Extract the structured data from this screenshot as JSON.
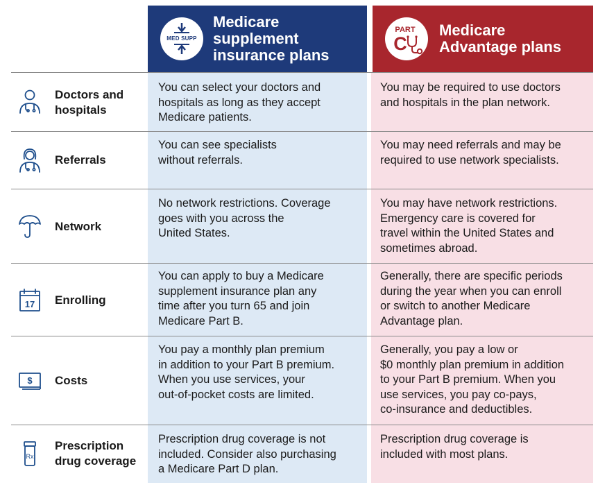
{
  "header": {
    "supplement": {
      "badge_text": "MED SUPP",
      "title": "Medicare\nsupplement\ninsurance plans"
    },
    "advantage": {
      "badge_part": "PART",
      "badge_letter": "C",
      "title": "Medicare\nAdvantage plans"
    }
  },
  "colors": {
    "supplement_header": "#1e3a7a",
    "advantage_header": "#a8262d",
    "supplement_bg": "#dde9f5",
    "advantage_bg": "#f8dfe5",
    "icon": "#1e4e8c"
  },
  "rows": [
    {
      "icon": "doctor-icon",
      "label": "Doctors and\nhospitals",
      "supplement": "You can select your doctors and\nhospitals as long as they accept\nMedicare patients.",
      "advantage": "You may be required to use doctors\nand hospitals in the plan network."
    },
    {
      "icon": "nurse-icon",
      "label": "Referrals",
      "supplement": "You can see specialists\nwithout referrals.",
      "advantage": "You may need referrals and may be\nrequired to use network specialists."
    },
    {
      "icon": "umbrella-icon",
      "label": "Network",
      "supplement": "No network restrictions. Coverage\ngoes with you across the\nUnited States.",
      "advantage": "You may have network restrictions.\nEmergency care is covered for\ntravel within the United States and\nsometimes abroad."
    },
    {
      "icon": "calendar-icon",
      "icon_text": "17",
      "label": "Enrolling",
      "supplement": "You can apply to buy a Medicare\nsupplement insurance plan any\ntime after you turn 65 and join\nMedicare Part B.",
      "advantage": "Generally, there are specific periods\nduring the year when you can enroll\nor switch to another Medicare\nAdvantage plan."
    },
    {
      "icon": "dollar-bill-icon",
      "icon_text": "$",
      "label": "Costs",
      "supplement": "You pay a monthly plan premium\nin addition to your Part B premium.\nWhen you use services, your\nout-of-pocket costs are limited.",
      "advantage": "Generally, you pay a low or\n$0 monthly plan premium in addition\nto your Part B premium. When you\nuse services, you pay co-pays,\nco-insurance and deductibles."
    },
    {
      "icon": "prescription-bottle-icon",
      "icon_text": "Rx",
      "label": "Prescription\ndrug coverage",
      "supplement": "Prescription drug coverage is not\nincluded. Consider also purchasing\na Medicare Part D plan.",
      "advantage": "Prescription drug coverage is\nincluded with most plans."
    }
  ]
}
